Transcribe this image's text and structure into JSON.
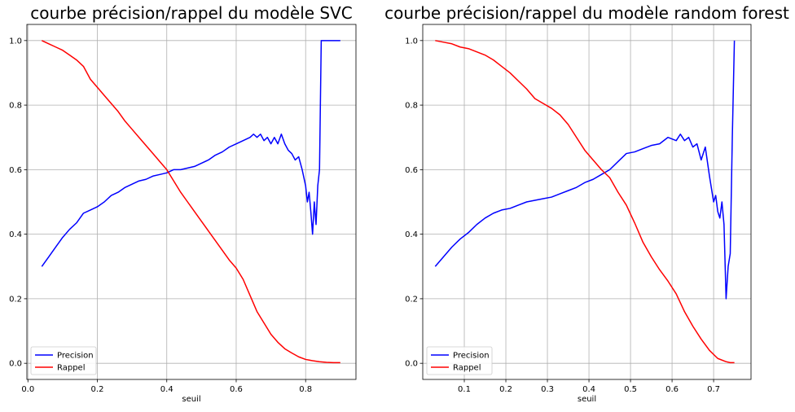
{
  "chart_data": [
    {
      "type": "line",
      "title": "courbe précision/rappel du modèle SVC",
      "xlabel": "seuil",
      "ylabel": "",
      "xlim": [
        -0.003,
        0.945
      ],
      "ylim": [
        -0.05,
        1.05
      ],
      "xticks": [
        0.0,
        0.2,
        0.4,
        0.6,
        0.8
      ],
      "xtick_labels": [
        "0.0",
        "0.2",
        "0.4",
        "0.6",
        "0.8"
      ],
      "yticks": [
        0.0,
        0.2,
        0.4,
        0.6,
        0.8,
        1.0
      ],
      "ytick_labels": [
        "0.0",
        "0.2",
        "0.4",
        "0.6",
        "0.8",
        "1.0"
      ],
      "grid": true,
      "legend": "lower-left",
      "series": [
        {
          "name": "Precision",
          "color": "#0000ff",
          "x": [
            0.04,
            0.06,
            0.08,
            0.1,
            0.12,
            0.14,
            0.16,
            0.18,
            0.2,
            0.22,
            0.24,
            0.26,
            0.28,
            0.3,
            0.32,
            0.34,
            0.36,
            0.38,
            0.4,
            0.42,
            0.44,
            0.46,
            0.48,
            0.5,
            0.52,
            0.54,
            0.56,
            0.58,
            0.6,
            0.62,
            0.64,
            0.65,
            0.66,
            0.67,
            0.68,
            0.69,
            0.7,
            0.71,
            0.72,
            0.73,
            0.74,
            0.75,
            0.76,
            0.77,
            0.78,
            0.79,
            0.8,
            0.805,
            0.81,
            0.815,
            0.82,
            0.825,
            0.83,
            0.835,
            0.84,
            0.845,
            0.85,
            0.86,
            0.88,
            0.9
          ],
          "y": [
            0.3,
            0.33,
            0.36,
            0.39,
            0.415,
            0.435,
            0.465,
            0.475,
            0.485,
            0.5,
            0.52,
            0.53,
            0.545,
            0.555,
            0.565,
            0.57,
            0.58,
            0.585,
            0.59,
            0.6,
            0.6,
            0.605,
            0.61,
            0.62,
            0.63,
            0.645,
            0.655,
            0.67,
            0.68,
            0.69,
            0.7,
            0.71,
            0.7,
            0.71,
            0.69,
            0.7,
            0.68,
            0.7,
            0.68,
            0.71,
            0.68,
            0.66,
            0.65,
            0.63,
            0.64,
            0.6,
            0.55,
            0.5,
            0.53,
            0.47,
            0.4,
            0.5,
            0.43,
            0.55,
            0.6,
            1.0,
            1.0,
            1.0,
            1.0,
            1.0
          ]
        },
        {
          "name": "Rappel",
          "color": "#ff0000",
          "x": [
            0.04,
            0.06,
            0.08,
            0.1,
            0.12,
            0.14,
            0.16,
            0.18,
            0.2,
            0.22,
            0.24,
            0.26,
            0.28,
            0.3,
            0.32,
            0.34,
            0.36,
            0.38,
            0.4,
            0.42,
            0.44,
            0.46,
            0.48,
            0.5,
            0.52,
            0.54,
            0.56,
            0.58,
            0.6,
            0.62,
            0.64,
            0.66,
            0.68,
            0.7,
            0.72,
            0.74,
            0.76,
            0.78,
            0.8,
            0.82,
            0.84,
            0.86,
            0.88,
            0.9
          ],
          "y": [
            1.0,
            0.99,
            0.98,
            0.97,
            0.955,
            0.94,
            0.92,
            0.88,
            0.855,
            0.83,
            0.805,
            0.78,
            0.75,
            0.725,
            0.7,
            0.675,
            0.65,
            0.625,
            0.6,
            0.565,
            0.53,
            0.5,
            0.47,
            0.44,
            0.41,
            0.38,
            0.35,
            0.32,
            0.295,
            0.26,
            0.21,
            0.16,
            0.125,
            0.09,
            0.065,
            0.045,
            0.032,
            0.02,
            0.012,
            0.008,
            0.005,
            0.003,
            0.002,
            0.002
          ]
        }
      ]
    },
    {
      "type": "line",
      "title": "courbe précision/rappel du modèle random forest",
      "xlabel": "seuil",
      "ylabel": "",
      "xlim": [
        0.0,
        0.79
      ],
      "ylim": [
        -0.05,
        1.05
      ],
      "xticks": [
        0.1,
        0.2,
        0.3,
        0.4,
        0.5,
        0.6,
        0.7
      ],
      "xtick_labels": [
        "0.1",
        "0.2",
        "0.3",
        "0.4",
        "0.5",
        "0.6",
        "0.7"
      ],
      "yticks": [
        0.0,
        0.2,
        0.4,
        0.6,
        0.8,
        1.0
      ],
      "ytick_labels": [
        "0.0",
        "0.2",
        "0.4",
        "0.6",
        "0.8",
        "1.0"
      ],
      "grid": true,
      "legend": "lower-left",
      "series": [
        {
          "name": "Precision",
          "color": "#0000ff",
          "x": [
            0.03,
            0.05,
            0.07,
            0.09,
            0.11,
            0.13,
            0.15,
            0.17,
            0.19,
            0.21,
            0.23,
            0.25,
            0.27,
            0.29,
            0.31,
            0.33,
            0.35,
            0.37,
            0.39,
            0.41,
            0.43,
            0.45,
            0.47,
            0.49,
            0.51,
            0.53,
            0.55,
            0.57,
            0.59,
            0.61,
            0.62,
            0.63,
            0.64,
            0.65,
            0.66,
            0.67,
            0.68,
            0.69,
            0.7,
            0.705,
            0.71,
            0.715,
            0.72,
            0.725,
            0.73,
            0.735,
            0.74,
            0.745,
            0.75
          ],
          "y": [
            0.3,
            0.33,
            0.36,
            0.385,
            0.405,
            0.43,
            0.45,
            0.465,
            0.475,
            0.48,
            0.49,
            0.5,
            0.505,
            0.51,
            0.515,
            0.525,
            0.535,
            0.545,
            0.56,
            0.57,
            0.585,
            0.6,
            0.625,
            0.65,
            0.655,
            0.665,
            0.675,
            0.68,
            0.7,
            0.69,
            0.71,
            0.69,
            0.7,
            0.67,
            0.68,
            0.63,
            0.67,
            0.58,
            0.5,
            0.52,
            0.47,
            0.45,
            0.5,
            0.43,
            0.2,
            0.3,
            0.34,
            0.7,
            1.0
          ]
        },
        {
          "name": "Rappel",
          "color": "#ff0000",
          "x": [
            0.03,
            0.05,
            0.07,
            0.09,
            0.11,
            0.13,
            0.15,
            0.17,
            0.19,
            0.21,
            0.23,
            0.25,
            0.27,
            0.29,
            0.31,
            0.33,
            0.35,
            0.37,
            0.39,
            0.41,
            0.43,
            0.45,
            0.47,
            0.49,
            0.51,
            0.53,
            0.55,
            0.57,
            0.59,
            0.61,
            0.63,
            0.65,
            0.67,
            0.69,
            0.71,
            0.73,
            0.74,
            0.75
          ],
          "y": [
            1.0,
            0.995,
            0.99,
            0.98,
            0.975,
            0.965,
            0.955,
            0.94,
            0.92,
            0.9,
            0.875,
            0.85,
            0.82,
            0.805,
            0.79,
            0.77,
            0.74,
            0.7,
            0.66,
            0.63,
            0.6,
            0.575,
            0.53,
            0.49,
            0.435,
            0.375,
            0.33,
            0.29,
            0.255,
            0.215,
            0.16,
            0.115,
            0.075,
            0.04,
            0.015,
            0.005,
            0.002,
            0.002
          ]
        }
      ]
    }
  ]
}
